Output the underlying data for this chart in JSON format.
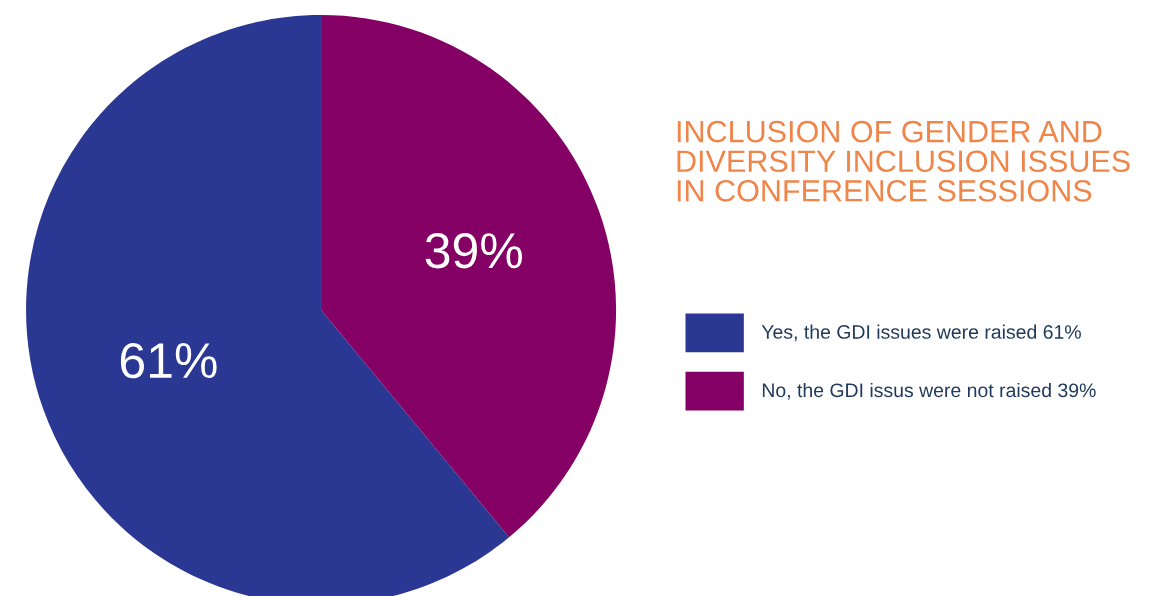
{
  "chart_data": {
    "type": "pie",
    "title": "INCLUSION OF GENDER AND\nDIVERSITY INCLUSION ISSUES\nIN CONFERENCE SESSIONS",
    "categories": [
      "Yes, the GDI issues were raised 61%",
      "No, the GDI issus were not raised 39%"
    ],
    "values": [
      61,
      39
    ],
    "colors": [
      "#2a3893",
      "#850064"
    ],
    "value_labels": [
      "61%",
      "39%"
    ],
    "legend": "right"
  }
}
